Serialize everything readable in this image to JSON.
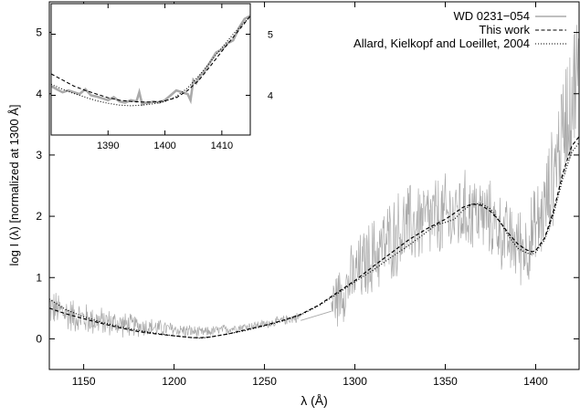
{
  "chart_data": [
    {
      "id": "main",
      "type": "line",
      "xlabel": "λ (Å)",
      "ylabel": "log I (λ) [normalized at 1300 Å]",
      "xlim": [
        1131,
        1424
      ],
      "ylim": [
        -0.5,
        5.5
      ],
      "xticks": [
        1150,
        1200,
        1250,
        1300,
        1350,
        1400
      ],
      "yticks": [
        0,
        1,
        2,
        3,
        4,
        5
      ],
      "grid": false,
      "legend_position": "top-right",
      "series": [
        {
          "name": "WD 0231−054",
          "style": "solid",
          "color": "#aaaaaa",
          "segments": [
            {
              "x": [
                1131,
                1140,
                1150,
                1160,
                1170,
                1180,
                1190,
                1200,
                1210,
                1215,
                1220,
                1230,
                1240,
                1250,
                1260,
                1270
              ],
              "y": [
                0.52,
                0.42,
                0.33,
                0.28,
                0.24,
                0.21,
                0.18,
                0.15,
                0.12,
                0.1,
                0.12,
                0.16,
                0.2,
                0.24,
                0.3,
                0.36
              ],
              "noise": [
                0.35,
                0.33,
                0.3,
                0.27,
                0.24,
                0.2,
                0.17,
                0.14,
                0.12,
                0.1,
                0.1,
                0.09,
                0.08,
                0.08,
                0.09,
                0.1
              ]
            },
            {
              "x": [
                1270,
                1287
              ],
              "y": [
                0.3,
                0.45
              ],
              "noise": [
                0,
                0
              ]
            },
            {
              "x": [
                1287,
                1295,
                1305,
                1315,
                1325,
                1335,
                1345,
                1355,
                1365,
                1375,
                1385,
                1395,
                1405,
                1412,
                1418,
                1424
              ],
              "y": [
                0.55,
                0.85,
                1.2,
                1.5,
                1.75,
                1.9,
                1.95,
                2.0,
                2.1,
                1.95,
                1.6,
                1.5,
                2.1,
                3.0,
                3.8,
                4.4
              ],
              "noise": [
                0.5,
                0.6,
                0.7,
                0.75,
                0.8,
                0.8,
                0.8,
                0.8,
                0.75,
                0.7,
                0.7,
                0.75,
                0.85,
                1.0,
                1.2,
                1.3
              ]
            }
          ]
        },
        {
          "name": "This work",
          "style": "dashed",
          "color": "#000000",
          "x": [
            1131,
            1140,
            1150,
            1160,
            1170,
            1180,
            1190,
            1200,
            1210,
            1215,
            1220,
            1230,
            1240,
            1250,
            1260,
            1270,
            1280,
            1290,
            1300,
            1310,
            1320,
            1330,
            1340,
            1350,
            1355,
            1360,
            1365,
            1370,
            1375,
            1380,
            1385,
            1390,
            1395,
            1398,
            1400,
            1405,
            1410,
            1415,
            1420,
            1424
          ],
          "y": [
            0.5,
            0.41,
            0.33,
            0.25,
            0.18,
            0.12,
            0.08,
            0.05,
            0.02,
            0.02,
            0.03,
            0.08,
            0.15,
            0.22,
            0.3,
            0.4,
            0.55,
            0.75,
            0.95,
            1.18,
            1.4,
            1.62,
            1.8,
            1.95,
            2.05,
            2.15,
            2.2,
            2.18,
            2.08,
            1.92,
            1.72,
            1.55,
            1.45,
            1.42,
            1.44,
            1.65,
            2.1,
            2.7,
            3.15,
            3.3
          ]
        },
        {
          "name": "Allard, Kielkopf and Loeillet, 2004",
          "style": "dotted",
          "color": "#000000",
          "x": [
            1131,
            1140,
            1150,
            1160,
            1170,
            1180,
            1190,
            1200,
            1210,
            1215,
            1220,
            1230,
            1240,
            1250,
            1260,
            1270,
            1280,
            1290,
            1300,
            1310,
            1320,
            1330,
            1340,
            1345,
            1350,
            1355,
            1360,
            1365,
            1370,
            1375,
            1380,
            1385,
            1390,
            1395,
            1398,
            1400,
            1405,
            1410,
            1415,
            1420,
            1424
          ],
          "y": [
            0.65,
            0.48,
            0.36,
            0.27,
            0.2,
            0.14,
            0.09,
            0.05,
            0.02,
            0.01,
            0.03,
            0.08,
            0.14,
            0.21,
            0.29,
            0.39,
            0.54,
            0.73,
            0.93,
            1.12,
            1.33,
            1.53,
            1.75,
            1.86,
            1.9,
            1.95,
            2.1,
            2.2,
            2.21,
            2.12,
            1.92,
            1.68,
            1.48,
            1.4,
            1.38,
            1.41,
            1.62,
            2.05,
            2.62,
            3.05,
            3.2
          ]
        }
      ]
    },
    {
      "id": "inset",
      "type": "line",
      "xlim": [
        1380,
        1415
      ],
      "ylim": [
        3.35,
        5.5
      ],
      "xticks": [
        1390,
        1400,
        1410
      ],
      "yticks": [
        4,
        5
      ],
      "series": [
        {
          "name": "WD 0231−054",
          "style": "solid",
          "color": "#aaaaaa",
          "x": [
            1380,
            1381,
            1382,
            1383,
            1384,
            1385,
            1386,
            1387,
            1388,
            1389,
            1390,
            1391,
            1392,
            1393,
            1394,
            1395,
            1395.5,
            1396,
            1396.5,
            1397,
            1398,
            1399,
            1400,
            1401,
            1402,
            1403,
            1404,
            1404.5,
            1405,
            1405.5,
            1406,
            1407,
            1408,
            1409,
            1410,
            1411,
            1412,
            1413,
            1414,
            1415
          ],
          "y": [
            4.15,
            4.1,
            4.05,
            4.08,
            4.05,
            4.02,
            4.1,
            4.0,
            3.98,
            3.95,
            3.92,
            3.97,
            3.9,
            3.88,
            3.92,
            3.9,
            4.05,
            3.85,
            3.88,
            3.87,
            3.9,
            3.88,
            3.92,
            4.0,
            4.08,
            4.05,
            4.02,
            3.92,
            4.25,
            4.2,
            4.3,
            4.4,
            4.55,
            4.7,
            4.75,
            4.85,
            4.9,
            5.1,
            5.25,
            5.3
          ]
        },
        {
          "name": "This work",
          "style": "dashed",
          "color": "#000000",
          "x": [
            1380,
            1382,
            1384,
            1386,
            1388,
            1390,
            1392,
            1394,
            1396,
            1398,
            1399,
            1400,
            1402,
            1404,
            1406,
            1408,
            1410,
            1412,
            1414,
            1415
          ],
          "y": [
            4.35,
            4.25,
            4.15,
            4.08,
            4.02,
            3.96,
            3.92,
            3.9,
            3.89,
            3.89,
            3.9,
            3.91,
            3.96,
            4.08,
            4.25,
            4.48,
            4.72,
            4.95,
            5.18,
            5.3
          ]
        },
        {
          "name": "Allard, Kielkopf and Loeillet, 2004",
          "style": "dotted",
          "color": "#000000",
          "x": [
            1380,
            1382,
            1384,
            1386,
            1388,
            1390,
            1392,
            1394,
            1396,
            1398,
            1400,
            1402,
            1404,
            1406,
            1408,
            1410,
            1412,
            1414,
            1415
          ],
          "y": [
            4.18,
            4.1,
            4.03,
            3.97,
            3.91,
            3.87,
            3.84,
            3.83,
            3.84,
            3.86,
            3.9,
            3.98,
            4.12,
            4.32,
            4.55,
            4.78,
            5.0,
            5.2,
            5.28
          ]
        }
      ]
    }
  ]
}
